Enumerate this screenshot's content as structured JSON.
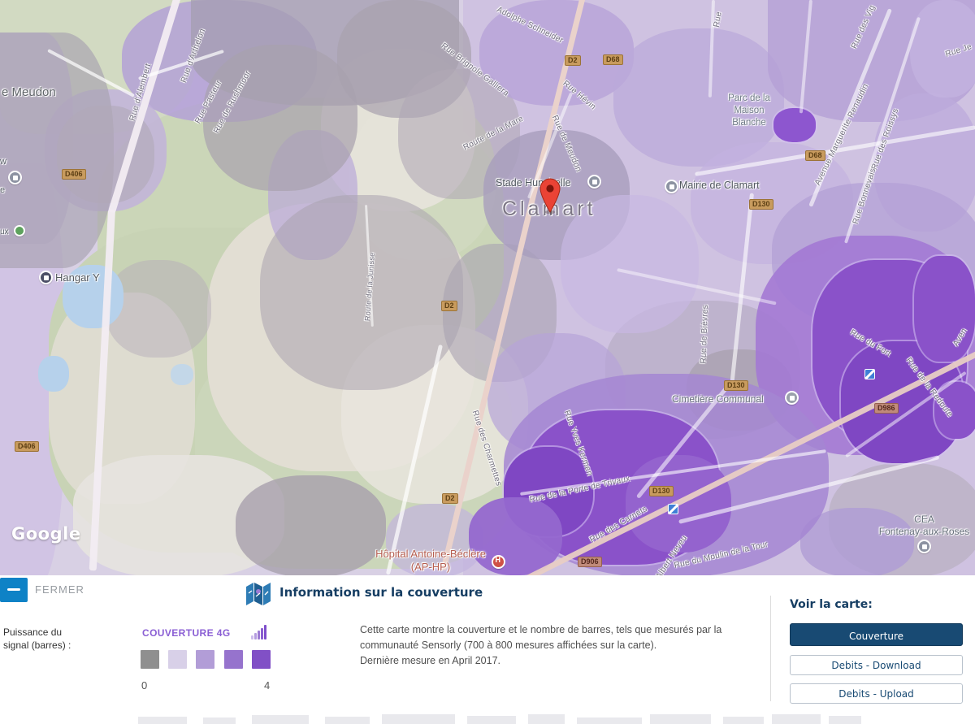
{
  "map": {
    "attribution": "Google",
    "city": "Clamart",
    "places": {
      "meudon": "e Meudon",
      "partial_w": "w",
      "partial_e": "e",
      "partial_ux": "ux",
      "hangar": "Hangar Y",
      "stade": "Stade Hunebelle",
      "mairie": "Mairie de Clamart",
      "parc_l1": "Parc de la",
      "parc_l2": "Maison",
      "parc_l3": "Blanche",
      "cimetiere": "Cimetière Communal",
      "hopital_l1": "Hôpital Antoine-Béclère",
      "hopital_l2": "(AP-HP)",
      "cea_l1": "CEA",
      "cea_l2": "Fontenay-aux-Roses"
    },
    "streets": [
      "Rue d'Alembert",
      "Rue d'Arthelon",
      "Rue Pasteur",
      "Rue de Rushmoor",
      "Rue Brignole Galliera",
      "Adolphe Schneider",
      "Rue Hévin",
      "Rue de Meudon",
      "Route de la Mare",
      "Route de la Junisse",
      "Avenue Marguerite Renaudin",
      "Rue des Roissys",
      "Rue des Vig",
      "Rue Bonnevais",
      "Rue Je",
      "Rue de Bièvres",
      "Rue du Fort",
      "Rue de la Redoute",
      "Rue des Charmettes",
      "Rue Yves Kermen",
      "Rue de la Porte de Trivaux",
      "Rue des Carnets",
      "Rue du Moulin de la Tour",
      "Albert Neveu",
      "Aven",
      "Rue"
    ],
    "shields": [
      "D406",
      "D406",
      "D2",
      "D68",
      "D2",
      "D2",
      "D68",
      "D130",
      "D130",
      "D130",
      "D906",
      "D986"
    ],
    "marker_color": "#ea4335"
  },
  "panel": {
    "fermer_label": "FERMER",
    "signal_label_line1": "Puissance du",
    "signal_label_line2": "signal (barres) :",
    "legend": {
      "title": "COUVERTURE 4G",
      "scale_min": "0",
      "scale_max": "4",
      "swatch_colors": [
        "#8f8f8f",
        "#d8d0e8",
        "#b29dd7",
        "#9673cd",
        "#8150c6"
      ]
    },
    "info": {
      "title": "Information sur la couverture",
      "body_line1": "Cette carte montre la couverture et le nombre de barres, tels que mesurés par la",
      "body_line2": "communauté Sensorly (700 à 800 mesures affichées sur la carte).",
      "body_line3": "Dernière mesure en April 2017."
    },
    "view_map": {
      "title": "Voir la carte:",
      "buttons": [
        "Couverture",
        "Debits - Download",
        "Debits - Upload"
      ]
    },
    "accent_blue": "#0e82c6",
    "navy": "#184a73"
  }
}
